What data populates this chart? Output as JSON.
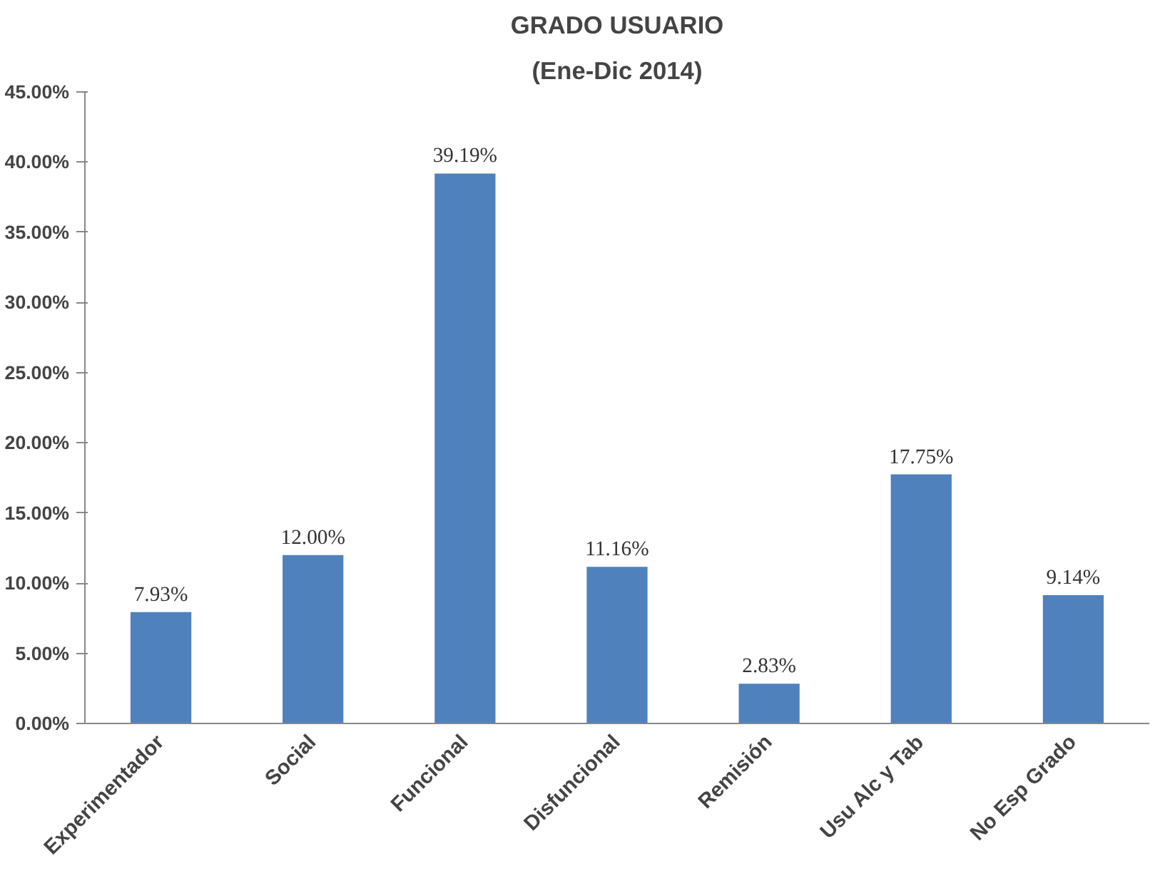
{
  "chart_data": {
    "type": "bar",
    "title": "GRADO USUARIO",
    "subtitle": "(Ene-Dic 2014)",
    "categories": [
      "Experimentador",
      "Social",
      "Funcional",
      "Disfuncional",
      "Remisión",
      "Usu Alc y Tab",
      "No Esp Grado"
    ],
    "values": [
      7.93,
      12.0,
      39.19,
      11.16,
      2.83,
      17.75,
      9.14
    ],
    "value_labels": [
      "7.93%",
      "12.00%",
      "39.19%",
      "11.16%",
      "2.83%",
      "17.75%",
      "9.14%"
    ],
    "color": "#4f81bd",
    "ylim": [
      0,
      45
    ],
    "yticks": [
      {
        "value": 0,
        "label": "0.00%"
      },
      {
        "value": 5,
        "label": "5.00%"
      },
      {
        "value": 10,
        "label": "10.00%"
      },
      {
        "value": 15,
        "label": "15.00%"
      },
      {
        "value": 20,
        "label": "20.00%"
      },
      {
        "value": 25,
        "label": "25.00%"
      },
      {
        "value": 30,
        "label": "30.00%"
      },
      {
        "value": 35,
        "label": "35.00%"
      },
      {
        "value": 40,
        "label": "40.00%"
      },
      {
        "value": 45,
        "label": "45.00%"
      }
    ]
  }
}
